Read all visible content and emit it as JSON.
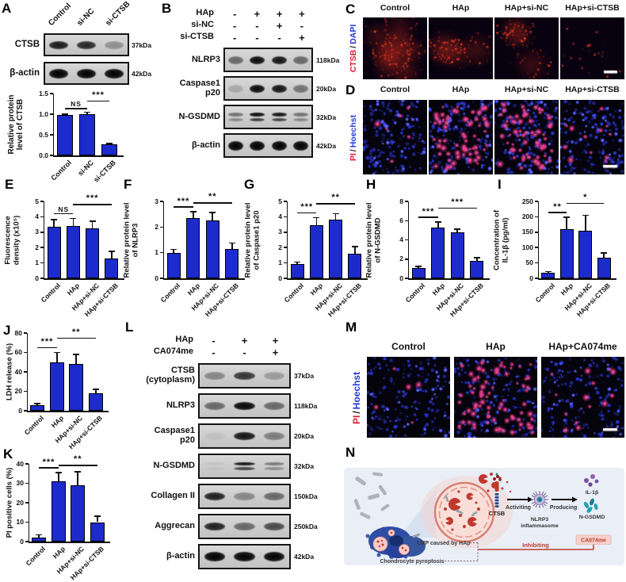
{
  "colors": {
    "bar_blue": "#1d2bcd",
    "ctsb_red": "#e0192e",
    "dapi_blue": "#2337dd",
    "accent_red": "#bf3a2d",
    "diagram_bg": "#e9eef7"
  },
  "chart_data": [
    {
      "id": "A",
      "type": "bar",
      "ylabel": [
        "Relative protein",
        "level of CTSB"
      ],
      "categories": [
        "Control",
        "si-NC",
        "si-CTSB"
      ],
      "values": [
        0.98,
        1.0,
        0.27
      ],
      "errors": [
        0.02,
        0.05,
        0.02
      ],
      "ylim": [
        0,
        1.5
      ],
      "yticks": [
        0,
        0.5,
        1,
        1.5
      ],
      "ytick_labels": [
        "0.0",
        "0.5",
        "1.0",
        "1.5"
      ],
      "sig": [
        {
          "i": 0,
          "j": 1,
          "label": "NS"
        },
        {
          "i": 1,
          "j": 2,
          "label": "***"
        }
      ]
    },
    {
      "id": "E",
      "type": "bar",
      "ylabel": [
        "Fluorescence",
        "density (x10⁵)"
      ],
      "categories": [
        "Control",
        "HAp",
        "HAp+si-NC",
        "HAp+si-CTSB"
      ],
      "values": [
        3.35,
        3.4,
        3.25,
        1.3
      ],
      "errors": [
        0.45,
        0.5,
        0.45,
        0.45
      ],
      "ylim": [
        0,
        5
      ],
      "yticks": [
        0,
        1,
        2,
        3,
        4,
        5
      ],
      "ytick_labels": [
        "0",
        "1",
        "2",
        "3",
        "4",
        "5"
      ],
      "sig": [
        {
          "i": 0,
          "j": 1,
          "label": "NS"
        },
        {
          "i": 1,
          "j": 3,
          "label": "***"
        }
      ]
    },
    {
      "id": "F",
      "type": "bar",
      "ylabel": [
        "Relative protein level",
        "of NLRP3"
      ],
      "categories": [
        "Control",
        "HAp",
        "HAp+si-NC",
        "HAp+si-CTSB"
      ],
      "values": [
        1.0,
        2.35,
        2.25,
        1.15
      ],
      "errors": [
        0.13,
        0.25,
        0.32,
        0.22
      ],
      "ylim": [
        0,
        3
      ],
      "yticks": [
        0,
        1,
        2,
        3
      ],
      "ytick_labels": [
        "0",
        "1",
        "2",
        "3"
      ],
      "sig": [
        {
          "i": 0,
          "j": 1,
          "label": "***"
        },
        {
          "i": 1,
          "j": 3,
          "label": "**"
        }
      ]
    },
    {
      "id": "G",
      "type": "bar",
      "ylabel": [
        "Relative protein level",
        "of Caspase1 p20"
      ],
      "categories": [
        "Control",
        "HAp",
        "HAp+si-NC",
        "HAp+si-CTSB"
      ],
      "values": [
        0.95,
        3.45,
        3.8,
        1.6
      ],
      "errors": [
        0.1,
        0.5,
        0.4,
        0.45
      ],
      "ylim": [
        0,
        5
      ],
      "yticks": [
        0,
        1,
        2,
        3,
        4,
        5
      ],
      "ytick_labels": [
        "0",
        "1",
        "2",
        "3",
        "4",
        "5"
      ],
      "sig": [
        {
          "i": 0,
          "j": 1,
          "label": "***"
        },
        {
          "i": 1,
          "j": 3,
          "label": "**"
        }
      ]
    },
    {
      "id": "H",
      "type": "bar",
      "ylabel": [
        "Relative protein level",
        "of N-GSDMD"
      ],
      "categories": [
        "Control",
        "HAp",
        "HAp+si-NC",
        "HAp+si-CTSB"
      ],
      "values": [
        1.1,
        5.3,
        4.75,
        1.85
      ],
      "errors": [
        0.15,
        0.55,
        0.35,
        0.3
      ],
      "ylim": [
        0,
        8
      ],
      "yticks": [
        0,
        2,
        4,
        6,
        8
      ],
      "ytick_labels": [
        "0",
        "2",
        "4",
        "6",
        "8"
      ],
      "sig": [
        {
          "i": 0,
          "j": 1,
          "label": "***"
        },
        {
          "i": 1,
          "j": 3,
          "label": "***"
        }
      ]
    },
    {
      "id": "I",
      "type": "bar",
      "ylabel": [
        "Concentration of",
        "IL-1β (pg/ml)"
      ],
      "categories": [
        "Control",
        "HAp",
        "HAp+si-NC",
        "HAp+si-CTSB"
      ],
      "values": [
        17,
        160,
        155,
        68
      ],
      "errors": [
        5,
        38,
        50,
        15
      ],
      "ylim": [
        0,
        250
      ],
      "yticks": [
        0,
        50,
        100,
        150,
        200,
        250
      ],
      "ytick_labels": [
        "0",
        "50",
        "100",
        "150",
        "200",
        "250"
      ],
      "sig": [
        {
          "i": 0,
          "j": 1,
          "label": "**"
        },
        {
          "i": 1,
          "j": 3,
          "label": "*"
        }
      ]
    },
    {
      "id": "J",
      "type": "bar",
      "ylabel": [
        "LDH release (%)"
      ],
      "categories": [
        "Control",
        "HAp",
        "HAp+si-NC",
        "HAp+si-CTSB"
      ],
      "values": [
        6,
        50,
        48,
        18
      ],
      "errors": [
        1.5,
        10,
        10,
        4
      ],
      "ylim": [
        0,
        80
      ],
      "yticks": [
        0,
        20,
        40,
        60,
        80
      ],
      "ytick_labels": [
        "0",
        "20",
        "40",
        "60",
        "80"
      ],
      "sig": [
        {
          "i": 0,
          "j": 1,
          "label": "***"
        },
        {
          "i": 1,
          "j": 3,
          "label": "**"
        }
      ]
    },
    {
      "id": "K",
      "type": "bar",
      "ylabel": [
        "PI positive cells (%)"
      ],
      "categories": [
        "Control",
        "HAp",
        "HAp+si-NC",
        "HAp+si-CTSB"
      ],
      "values": [
        2,
        31,
        29,
        10
      ],
      "errors": [
        1.5,
        4.5,
        7,
        3
      ],
      "ylim": [
        0,
        40
      ],
      "yticks": [
        0,
        10,
        20,
        30,
        40
      ],
      "ytick_labels": [
        "0",
        "10",
        "20",
        "30",
        "40"
      ],
      "sig": [
        {
          "i": 0,
          "j": 1,
          "label": "***"
        },
        {
          "i": 1,
          "j": 3,
          "label": "**"
        }
      ]
    }
  ],
  "panels": {
    "A": {
      "label": "A",
      "lanes": [
        "Control",
        "si-NC",
        "si-CTSB"
      ],
      "rows": [
        {
          "name": "CTSB",
          "kda": "37kDa",
          "bands": [
            0.88,
            0.82,
            0.3
          ]
        },
        {
          "name": "β-actin",
          "kda": "42kDa",
          "bands": [
            1,
            1,
            1
          ]
        }
      ]
    },
    "B": {
      "label": "B",
      "conditions": [
        [
          "HAp",
          "-",
          "+",
          "+",
          "+"
        ],
        [
          "si-NC",
          "-",
          "-",
          "+",
          "-"
        ],
        [
          "si-CTSB",
          "-",
          "-",
          "-",
          "+"
        ]
      ],
      "rows": [
        {
          "name": "NLRP3",
          "kda": "118kDa",
          "bands": [
            0.5,
            0.95,
            0.9,
            0.5
          ]
        },
        {
          "name": "Caspase1\np20",
          "kda": "20kDa",
          "bands": [
            0.18,
            0.95,
            0.9,
            0.45
          ]
        },
        {
          "name": "N-GSDMD",
          "kda": "32kDa",
          "bands": [
            0.45,
            0.95,
            0.9,
            0.45
          ],
          "double": true
        },
        {
          "name": "β-actin",
          "kda": "42kDa",
          "bands": [
            1,
            1,
            1,
            1
          ]
        }
      ]
    },
    "C": {
      "label": "C",
      "axis": {
        "p1": "CTSB",
        "sep": "/",
        "p2": "DAPI"
      },
      "columns": [
        "Control",
        "HAp",
        "HAp+si-NC",
        "HAp+si-CTSB"
      ],
      "cells": [
        {
          "nuclei": 9,
          "red": 150
        },
        {
          "nuclei": 4,
          "red": 90
        },
        {
          "nuclei": 3,
          "red": 100
        },
        {
          "nuclei": 5,
          "red": 25
        }
      ]
    },
    "D": {
      "label": "D",
      "axis": {
        "p1": "PI",
        "sep": "/",
        "p2": "Hoechst"
      },
      "columns": [
        "Control",
        "HAp",
        "HAp+si-NC",
        "HAp+si-CTSB"
      ],
      "cells": [
        {
          "blue": 170,
          "red": 6
        },
        {
          "blue": 170,
          "red": 70
        },
        {
          "blue": 170,
          "red": 62
        },
        {
          "blue": 170,
          "red": 12
        }
      ]
    },
    "E": {
      "label": "E"
    },
    "F": {
      "label": "F"
    },
    "G": {
      "label": "G"
    },
    "H": {
      "label": "H"
    },
    "I": {
      "label": "I"
    },
    "J": {
      "label": "J"
    },
    "K": {
      "label": "K"
    },
    "L": {
      "label": "L",
      "conditions": [
        [
          "HAp",
          "-",
          "+",
          "+"
        ],
        [
          "CA074me",
          "-",
          "-",
          "+"
        ]
      ],
      "rows": [
        {
          "name": "CTSB\n(cytoplasm)",
          "kda": "37kDa",
          "bands": [
            0.35,
            0.75,
            0.25
          ]
        },
        {
          "name": "NLRP3",
          "kda": "118kDa",
          "bands": [
            0.5,
            0.97,
            0.5
          ]
        },
        {
          "name": "Caspase1\np20",
          "kda": "20kDa",
          "bands": [
            0.06,
            0.9,
            0.4
          ]
        },
        {
          "name": "N-GSDMD",
          "kda": "32kDa",
          "bands": [
            0.06,
            0.9,
            0.42
          ],
          "double": true
        },
        {
          "name": "Collagen II",
          "kda": "150kDa",
          "bands": [
            0.85,
            0.35,
            0.5
          ]
        },
        {
          "name": "Aggrecan",
          "kda": "250kDa",
          "bands": [
            0.85,
            0.5,
            0.65
          ]
        },
        {
          "name": "β-actin",
          "kda": "42kDa",
          "bands": [
            1,
            1,
            1
          ]
        }
      ]
    },
    "M": {
      "label": "M",
      "axis": {
        "p1": "PI",
        "sep": "/",
        "p2": "Hoechst"
      },
      "columns": [
        "Control",
        "HAp",
        "HAp+CA074me"
      ],
      "cells": [
        {
          "blue": 175,
          "red": 5
        },
        {
          "blue": 175,
          "red": 80
        },
        {
          "blue": 175,
          "red": 14
        }
      ]
    },
    "N": {
      "label": "N",
      "labels": {
        "lmp": "LMP caused by HAp",
        "pyroptosis": "Chondrocyte pyroptosis",
        "ctsb": "CTSB",
        "activating": "Activiting",
        "nlrp3_1": "NLRP3",
        "nlrp3_2": "inflammasome",
        "producing": "Producing",
        "il1b": "IL-1β",
        "ngsdmd": "N-GSDMD",
        "ca074me": "CA074me",
        "inhibiting": "Inhibiting"
      }
    }
  }
}
